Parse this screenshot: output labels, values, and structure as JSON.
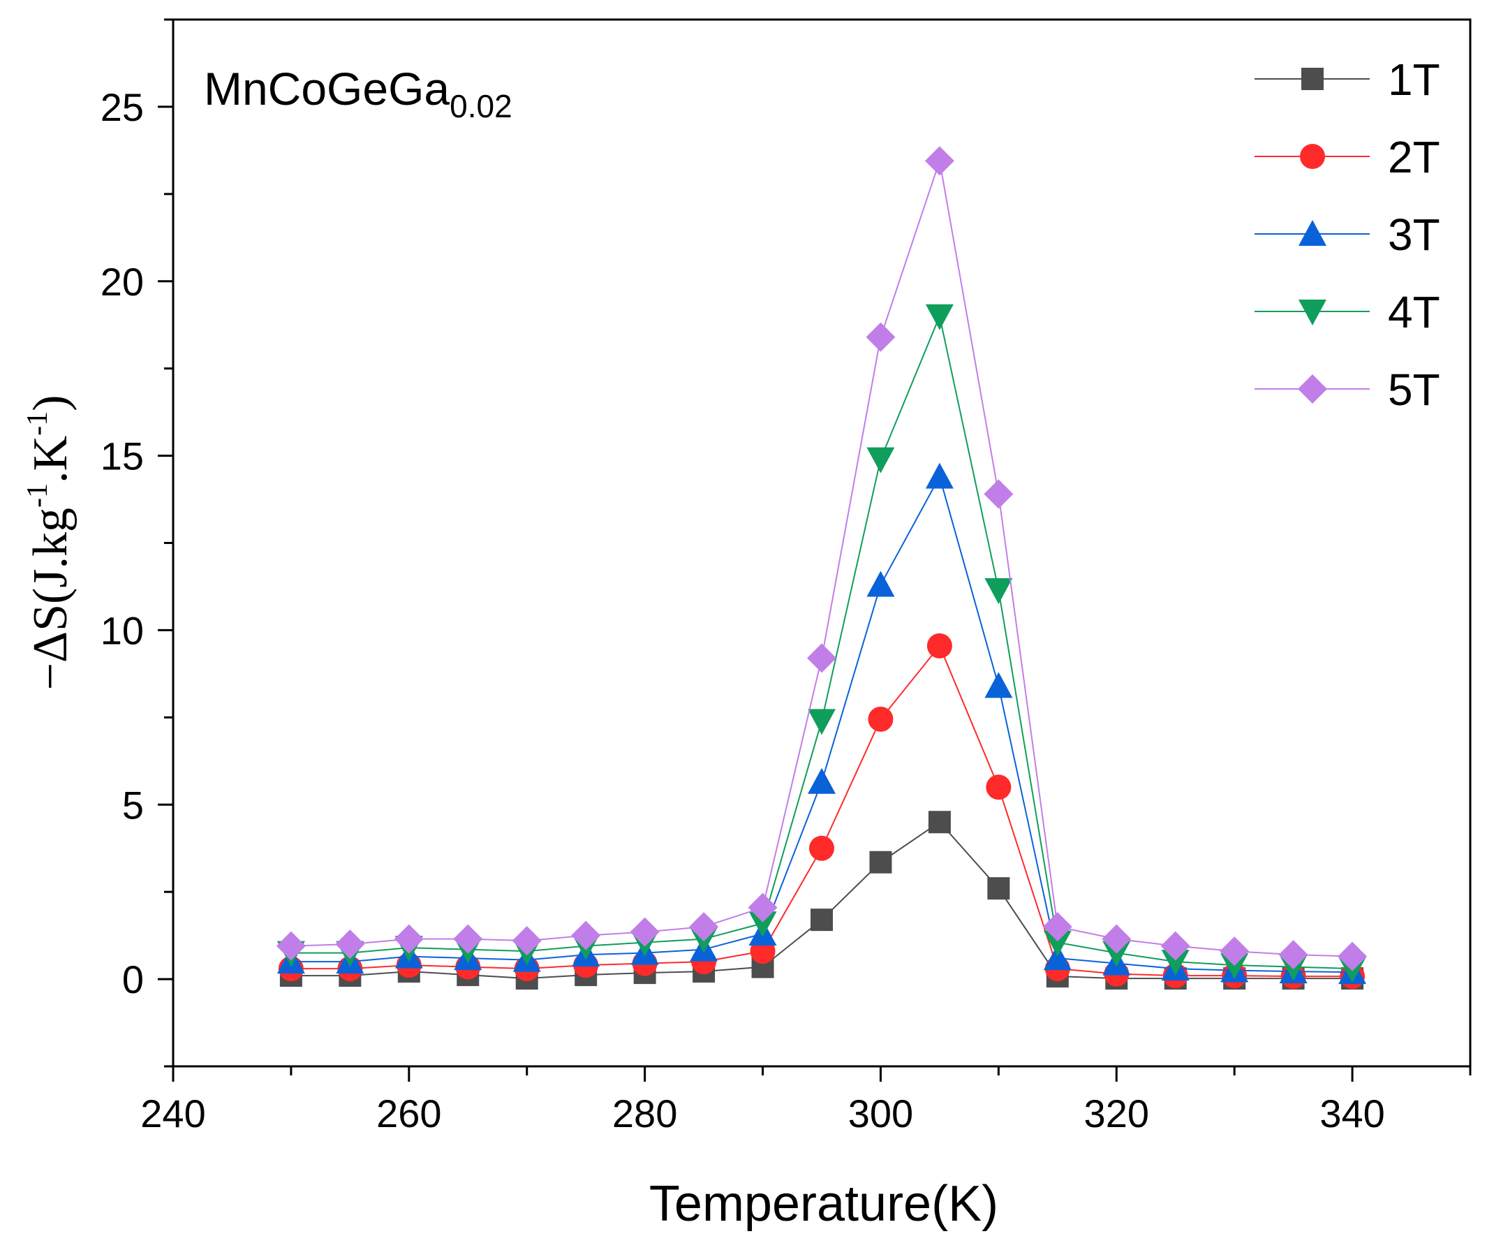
{
  "chart_data": {
    "type": "line",
    "title": "",
    "annotation": {
      "base": "MnCoGeGa",
      "subscript": "0.02"
    },
    "xlabel": "Temperature(K)",
    "ylabel": {
      "prefix": "−ΔS(J.kg",
      "sup1": "-1",
      "middle": ".K",
      "sup2": "-1",
      "suffix": ")"
    },
    "xlim": [
      240,
      350
    ],
    "ylim": [
      -2.5,
      27.5
    ],
    "xticks": [
      240,
      260,
      280,
      300,
      320,
      340
    ],
    "yticks": [
      0,
      5,
      10,
      15,
      20,
      25
    ],
    "x": [
      250,
      255,
      260,
      265,
      270,
      275,
      280,
      285,
      290,
      295,
      300,
      305,
      310,
      315,
      320,
      325,
      330,
      335,
      340
    ],
    "legend_position": "top-right",
    "series": [
      {
        "name": "1T",
        "color": "#4d4d4d",
        "marker": "square",
        "values": [
          0.1,
          0.1,
          0.22,
          0.12,
          0.02,
          0.12,
          0.18,
          0.22,
          0.35,
          1.7,
          3.35,
          4.5,
          2.6,
          0.08,
          0.02,
          0.02,
          0.02,
          0.02,
          0.02
        ]
      },
      {
        "name": "2T",
        "color": "#ff2a2a",
        "marker": "circle",
        "values": [
          0.3,
          0.3,
          0.4,
          0.35,
          0.3,
          0.4,
          0.45,
          0.5,
          0.8,
          3.75,
          7.45,
          9.55,
          5.5,
          0.3,
          0.15,
          0.1,
          0.1,
          0.08,
          0.08
        ]
      },
      {
        "name": "3T",
        "color": "#0a62d9",
        "marker": "triangle-up",
        "values": [
          0.5,
          0.5,
          0.65,
          0.6,
          0.55,
          0.7,
          0.75,
          0.85,
          1.3,
          5.65,
          11.3,
          14.4,
          8.4,
          0.6,
          0.45,
          0.3,
          0.25,
          0.22,
          0.2
        ]
      },
      {
        "name": "4T",
        "color": "#0f9e5b",
        "marker": "triangle-down",
        "values": [
          0.75,
          0.75,
          0.9,
          0.85,
          0.8,
          0.95,
          1.05,
          1.15,
          1.6,
          7.4,
          14.9,
          19.0,
          11.15,
          1.05,
          0.75,
          0.5,
          0.4,
          0.35,
          0.3
        ]
      },
      {
        "name": "5T",
        "color": "#c17ee8",
        "marker": "diamond",
        "values": [
          0.95,
          1.0,
          1.15,
          1.15,
          1.1,
          1.25,
          1.35,
          1.5,
          2.05,
          9.2,
          18.4,
          23.45,
          13.9,
          1.5,
          1.15,
          0.95,
          0.8,
          0.7,
          0.65
        ]
      }
    ]
  }
}
